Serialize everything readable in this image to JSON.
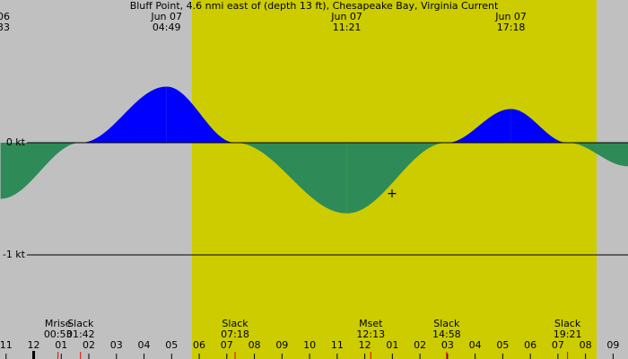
{
  "chart_data": {
    "type": "current",
    "title": "Bluff Point, 4.6 nmi east of (depth 13 ft), Chesapeake Bay, Virginia Current",
    "x": [
      -1.2,
      1.7,
      4.817,
      7.3,
      11.35,
      14.967,
      17.3,
      19.35,
      21.55
    ],
    "values": [
      -0.5,
      0,
      0.5,
      0,
      -0.63,
      0,
      0.3,
      0,
      -0.21
    ],
    "flood_color": "#0000ff",
    "ebb_color": "#2e8b57",
    "xlim": [
      -1.22,
      21.54
    ],
    "ylim": [
      -1.928,
      1.272
    ],
    "yticks": [
      {
        "value": 0,
        "label": "0 kt"
      },
      {
        "value": -1,
        "label": "-1 kt"
      }
    ],
    "xticks": [
      {
        "value": -1,
        "label": "11"
      },
      {
        "value": 0,
        "label": "12"
      },
      {
        "value": 1,
        "label": "01"
      },
      {
        "value": 2,
        "label": "02"
      },
      {
        "value": 3,
        "label": "03"
      },
      {
        "value": 4,
        "label": "04"
      },
      {
        "value": 5,
        "label": "05"
      },
      {
        "value": 6,
        "label": "06"
      },
      {
        "value": 7,
        "label": "07"
      },
      {
        "value": 8,
        "label": "08"
      },
      {
        "value": 9,
        "label": "09"
      },
      {
        "value": 10,
        "label": "10"
      },
      {
        "value": 11,
        "label": "11"
      },
      {
        "value": 12,
        "label": "12"
      },
      {
        "value": 13,
        "label": "01"
      },
      {
        "value": 14,
        "label": "02"
      },
      {
        "value": 15,
        "label": "03"
      },
      {
        "value": 16,
        "label": "04"
      },
      {
        "value": 17,
        "label": "05"
      },
      {
        "value": 18,
        "label": "06"
      },
      {
        "value": 19,
        "label": "07"
      },
      {
        "value": 20,
        "label": "08"
      },
      {
        "value": 21,
        "label": "09"
      }
    ],
    "top_labels": [
      {
        "x": 4.817,
        "date": "Jun 07",
        "time": "04:49"
      },
      {
        "x": 11.35,
        "date": "Jun 07",
        "time": "11:21"
      },
      {
        "x": 17.3,
        "date": "Jun 07",
        "time": "17:18"
      }
    ],
    "left_partial": {
      "date": "06",
      "time": "33"
    },
    "events": [
      {
        "name": "Mrise",
        "time": "00:53",
        "x": 0.883
      },
      {
        "name": "Slack",
        "time": "01:42",
        "x": 1.7
      },
      {
        "name": "Slack",
        "time": "07:18",
        "x": 7.3
      },
      {
        "name": "Mset",
        "time": "12:13",
        "x": 12.217
      },
      {
        "name": "Slack",
        "time": "14:58",
        "x": 14.967
      },
      {
        "name": "Slack",
        "time": "19:21",
        "x": 19.35
      }
    ]
  }
}
